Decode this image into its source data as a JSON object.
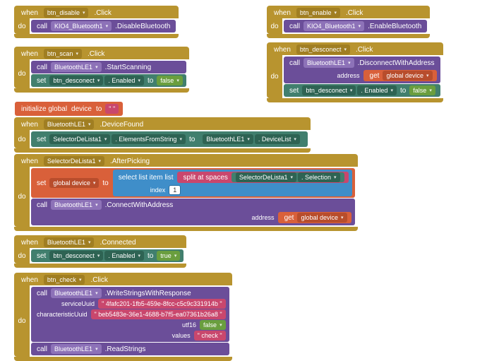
{
  "colors": {
    "gold": "#b8942f",
    "gold_dark": "#a07e22",
    "purple": "#6b4e99",
    "purple_light": "#8d72b8",
    "teal": "#417f6e",
    "teal_dd": "#2e6353",
    "orange": "#d9603a",
    "orange_dd": "#b84d2c",
    "green": "#6a9e3e",
    "green_dd": "#4d7a27",
    "pink": "#c9476d",
    "pink_dd": "#ab3356",
    "blue": "#3f8ec9",
    "blue_dd": "#2b6e9f",
    "white": "#ffffff",
    "text_dark": "#333333"
  },
  "b1": {
    "when": "when",
    "comp": "btn_disable",
    "evt": ".Click",
    "do": "do",
    "call": "call",
    "target": "KIO4_Bluetooth1",
    "method": ".DisableBluetooth"
  },
  "b2": {
    "when": "when",
    "comp": "btn_enable",
    "evt": ".Click",
    "do": "do",
    "call": "call",
    "target": "KIO4_Bluetooth1",
    "method": ".EnableBluetooth"
  },
  "b3": {
    "when": "when",
    "comp": "btn_scan",
    "evt": ".Click",
    "do": "do",
    "l1_call": "call",
    "l1_t": "BluetoothLE1",
    "l1_m": ".StartScanning",
    "l2_set": "set",
    "l2_t": "btn_desconect",
    "l2_p": ". Enabled",
    "l2_to": "to",
    "l2_v": "false"
  },
  "b4": {
    "when": "when",
    "comp": "btn_desconect",
    "evt": ".Click",
    "do": "do",
    "l1_call": "call",
    "l1_t": "BluetoothLE1",
    "l1_m": ".DisconnectWithAddress",
    "l1_arg": "address",
    "l1_get": "get",
    "l1_var": "global device",
    "l2_set": "set",
    "l2_t": "btn_desconect",
    "l2_p": ". Enabled",
    "l2_to": "to",
    "l2_v": "false"
  },
  "b5": {
    "init": "initialize global",
    "name": "device",
    "to": "to",
    "val": "\" \""
  },
  "b6": {
    "when": "when",
    "comp": "BluetoothLE1",
    "evt": ".DeviceFound",
    "do": "do",
    "set": "set",
    "t": "SelectorDeLista1",
    "p": ". ElementsFromString",
    "to": "to",
    "r_t": "BluetoothLE1",
    "r_p": ". DeviceList"
  },
  "b7": {
    "when": "when",
    "comp": "SelectorDeLista1",
    "evt": ".AfterPicking",
    "do": "do",
    "l1_set": "set",
    "l1_var": "global device",
    "l1_to": "to",
    "sel": "select list item  list",
    "split": "split at spaces",
    "sp_t": "SelectorDeLista1",
    "sp_p": ". Selection",
    "idx_lbl": "index",
    "idx_v": "1",
    "l2_call": "call",
    "l2_t": "BluetoothLE1",
    "l2_m": ".ConnectWithAddress",
    "l2_arg": "address",
    "l2_get": "get",
    "l2_gvar": "global device"
  },
  "b8": {
    "when": "when",
    "comp": "BluetoothLE1",
    "evt": ".Connected",
    "do": "do",
    "set": "set",
    "t": "btn_desconect",
    "p": ". Enabled",
    "to": "to",
    "v": "true"
  },
  "b9": {
    "when": "when",
    "comp": "btn_check",
    "evt": ".Click",
    "do": "do",
    "l1_call": "call",
    "l1_t": "BluetoothLE1",
    "l1_m": ".WriteStringsWithResponse",
    "a1": "serviceUuid",
    "v1": "\" 4fafc201-1fb5-459e-8fcc-c5c9c331914b \"",
    "a2": "characteristicUuid",
    "v2": "\" beb5483e-36e1-4688-b7f5-ea07361b26a8 \"",
    "a3": "utf16",
    "v3": "false",
    "a4": "values",
    "v4": "\" check \"",
    "l2_call": "call",
    "l2_t": "BluetoothLE1",
    "l2_m": ".ReadStrings"
  }
}
